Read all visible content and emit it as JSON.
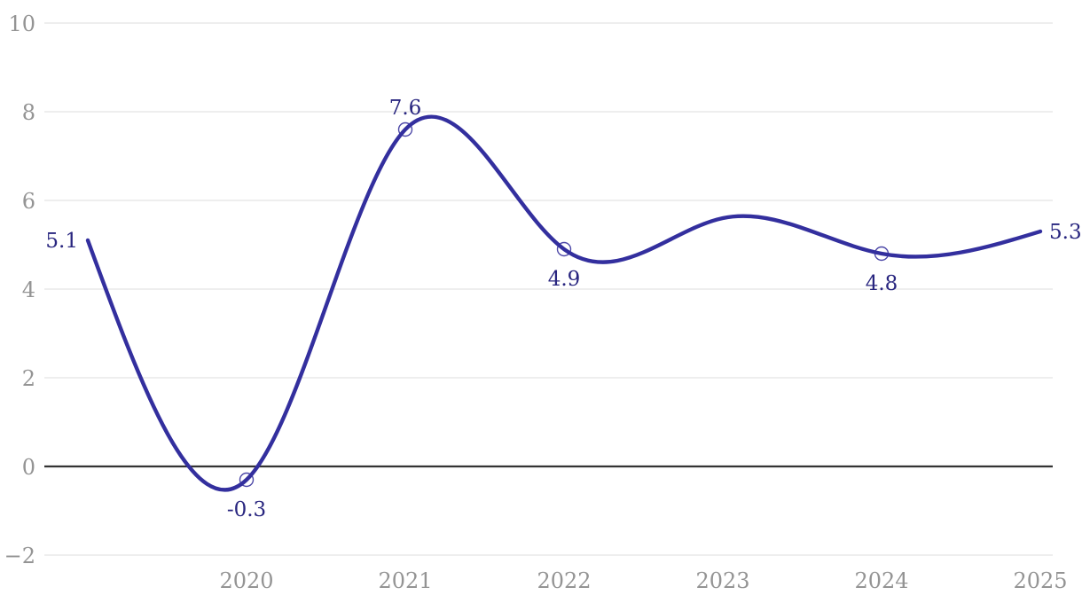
{
  "chart_data": {
    "type": "line",
    "title": "",
    "x": [
      2019,
      2020,
      2021,
      2022,
      2023,
      2024,
      2025
    ],
    "values": [
      5.1,
      -0.3,
      7.6,
      4.9,
      5.6,
      4.8,
      5.3
    ],
    "point_labels": [
      "5.1",
      "-0.3",
      "7.6",
      "4.9",
      "",
      "4.8",
      "5.3"
    ],
    "label_positions": [
      "left",
      "below",
      "above",
      "below",
      "none",
      "below",
      "right"
    ],
    "markers": [
      false,
      true,
      true,
      true,
      false,
      true,
      false
    ],
    "x_tick_labels": [
      "2020",
      "2021",
      "2022",
      "2023",
      "2024",
      "2025"
    ],
    "x_tick_years": [
      2020,
      2021,
      2022,
      2023,
      2024,
      2025
    ],
    "y_ticks": [
      10,
      8,
      6,
      4,
      2,
      0,
      -2
    ],
    "y_tick_labels": [
      "10",
      "8",
      "6",
      "4",
      "2",
      "0",
      "−2"
    ],
    "ylim": [
      -2,
      10
    ],
    "xlim": [
      2019,
      2025
    ],
    "curve": "natural-cubic-spline",
    "grid": "horizontal-only",
    "zero_line": true,
    "legend": "none",
    "colors": {
      "line": "#332f9e",
      "marker_stroke": "#4c47a7",
      "marker_fill": "#ffffff",
      "point_label": "#28257f",
      "axis_label": "#949494",
      "gridline": "#e8e8e8",
      "zero_line": "#333333",
      "background": "#ffffff"
    }
  }
}
